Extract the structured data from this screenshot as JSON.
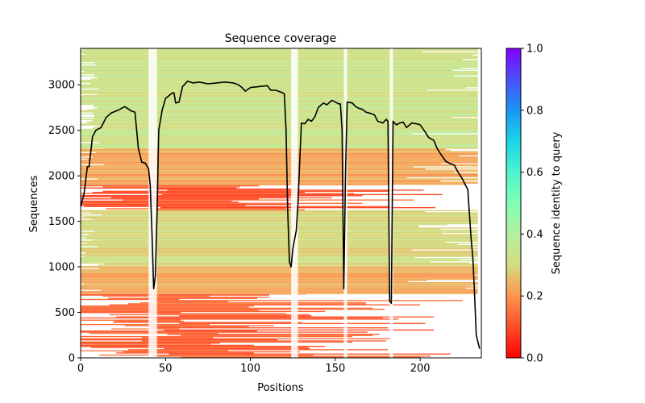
{
  "chart_data": {
    "type": "heatmap",
    "title": "Sequence coverage",
    "xlabel": "Positions",
    "ylabel": "Sequences",
    "xlim": [
      0,
      236
    ],
    "ylim": [
      0,
      3400
    ],
    "xticks": [
      0,
      50,
      100,
      150,
      200
    ],
    "yticks": [
      0,
      500,
      1000,
      1500,
      2000,
      2500,
      3000
    ],
    "grid": false,
    "colorbar": {
      "label": "Sequence identity to query",
      "colormap": "rainbow_r",
      "range": [
        0.0,
        1.0
      ],
      "ticks": [
        "0.0",
        "0.2",
        "0.4",
        "0.6",
        "0.8",
        "1.0"
      ]
    },
    "identity_bands": [
      {
        "seq_from": 0,
        "seq_to": 700,
        "identity": 0.13
      },
      {
        "seq_from": 700,
        "seq_to": 1000,
        "identity": 0.22
      },
      {
        "seq_from": 1000,
        "seq_to": 1620,
        "identity": 0.3
      },
      {
        "seq_from": 1620,
        "seq_to": 1900,
        "identity": 0.12
      },
      {
        "seq_from": 1900,
        "seq_to": 2300,
        "identity": 0.22
      },
      {
        "seq_from": 2300,
        "seq_to": 3400,
        "identity": 0.33
      }
    ],
    "gap_columns": [
      {
        "from": 40,
        "to": 45
      },
      {
        "from": 124,
        "to": 128
      },
      {
        "from": 155,
        "to": 157
      },
      {
        "from": 182,
        "to": 184
      }
    ],
    "coverage_line": {
      "name": "coverage",
      "color": "#000000",
      "x": [
        0,
        2,
        4,
        5,
        7,
        9,
        12,
        15,
        18,
        22,
        26,
        30,
        32,
        34,
        36,
        38,
        40,
        41,
        42,
        43,
        44,
        45,
        46,
        48,
        50,
        52,
        54,
        55,
        56,
        58,
        60,
        63,
        66,
        70,
        75,
        80,
        85,
        90,
        93,
        95,
        97,
        100,
        105,
        110,
        112,
        115,
        118,
        120,
        121,
        122,
        123,
        124,
        125,
        127,
        128,
        130,
        132,
        134,
        136,
        138,
        140,
        143,
        145,
        148,
        150,
        152,
        153,
        154,
        155,
        156,
        157,
        160,
        162,
        164,
        166,
        168,
        170,
        173,
        175,
        178,
        180,
        181,
        182,
        183,
        184,
        186,
        188,
        190,
        192,
        195,
        198,
        200,
        203,
        205,
        208,
        210,
        212,
        215,
        218,
        220,
        222,
        225,
        228,
        230,
        231,
        232,
        233,
        235
      ],
      "y": [
        1660,
        1800,
        2100,
        2100,
        2430,
        2500,
        2530,
        2640,
        2690,
        2720,
        2760,
        2710,
        2700,
        2300,
        2150,
        2140,
        2080,
        1900,
        1400,
        760,
        900,
        1600,
        2500,
        2720,
        2850,
        2880,
        2910,
        2910,
        2800,
        2810,
        2980,
        3040,
        3020,
        3030,
        3010,
        3020,
        3030,
        3020,
        3000,
        2970,
        2930,
        2970,
        2980,
        2990,
        2940,
        2940,
        2920,
        2900,
        2500,
        1600,
        1050,
        1000,
        1200,
        1400,
        1700,
        2580,
        2570,
        2620,
        2600,
        2650,
        2750,
        2800,
        2780,
        2830,
        2810,
        2790,
        2790,
        2500,
        760,
        2000,
        2810,
        2800,
        2760,
        2740,
        2730,
        2700,
        2690,
        2670,
        2600,
        2580,
        2620,
        2600,
        620,
        600,
        2600,
        2560,
        2580,
        2590,
        2530,
        2580,
        2570,
        2560,
        2480,
        2420,
        2390,
        2300,
        2240,
        2160,
        2130,
        2120,
        2050,
        1960,
        1850,
        1300,
        1100,
        700,
        250,
        100
      ]
    }
  }
}
